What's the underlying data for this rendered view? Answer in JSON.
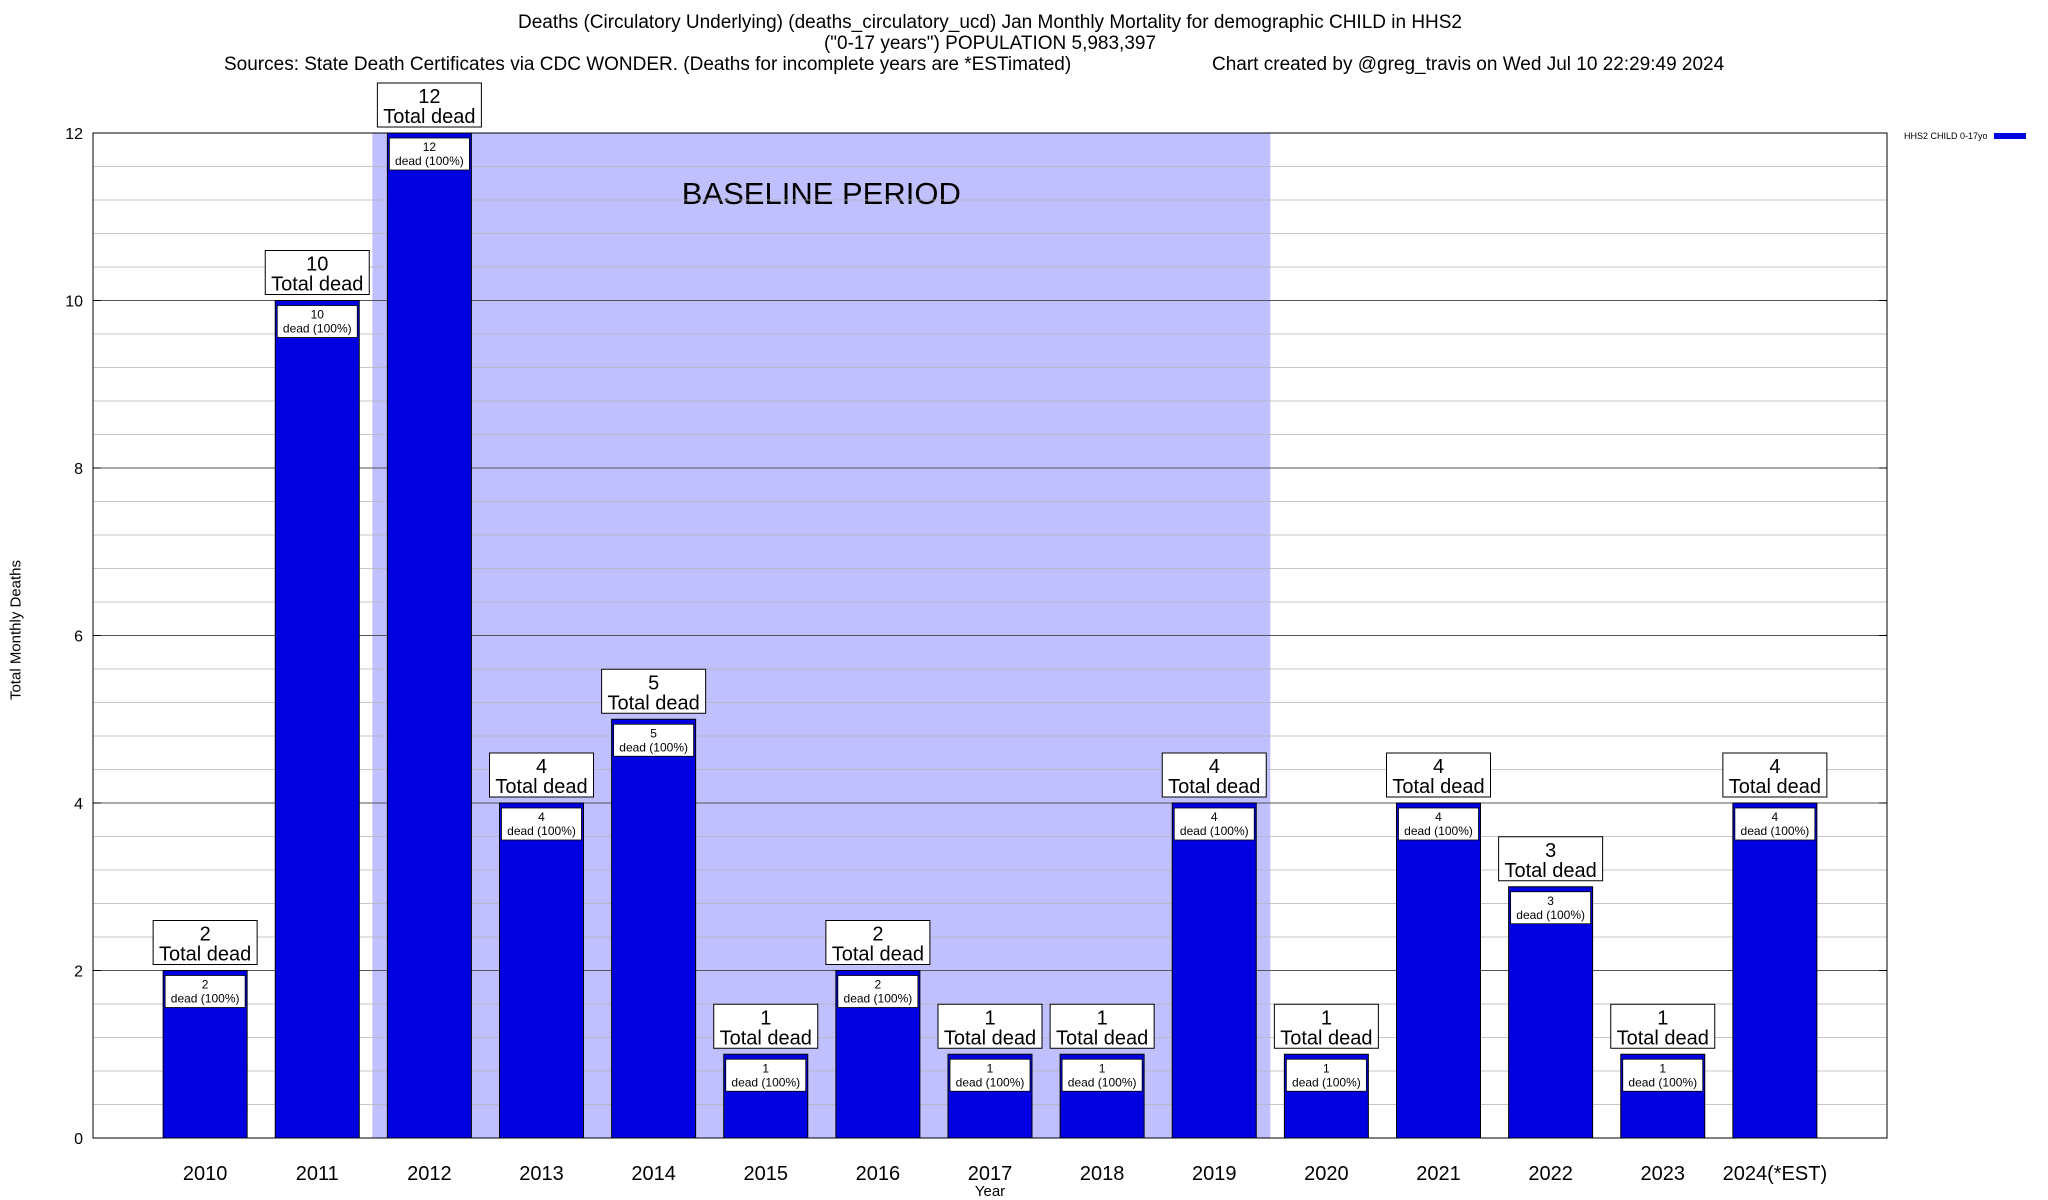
{
  "title": {
    "line1": "Deaths (Circulatory Underlying) (deaths_circulatory_ucd) Jan Monthly Mortality for demographic CHILD in HHS2",
    "line2": "(\"0-17 years\") POPULATION 5,983,397",
    "line3": "Sources: State Death Certificates via CDC WONDER. (Deaths for incomplete years are *ESTimated)",
    "line4": "Chart created by @greg_travis on Wed Jul 10 22:29:49 2024"
  },
  "legend": {
    "label": "HHS2 CHILD 0-17yo"
  },
  "colors": {
    "bar": "#0000e0",
    "baseline_band": "#c0c0ff",
    "grid": "#b4b4b4"
  },
  "chart_data": {
    "type": "bar",
    "title": "Deaths (Circulatory Underlying) (deaths_circulatory_ucd) Jan Monthly Mortality for demographic CHILD in HHS2",
    "xlabel": "Year",
    "ylabel": "Total Monthly Deaths",
    "ylim": [
      0,
      12
    ],
    "yticks": [
      0,
      2,
      4,
      6,
      8,
      10,
      12
    ],
    "grid": true,
    "legend_position": "top-right",
    "categories": [
      "2010",
      "2011",
      "2012",
      "2013",
      "2014",
      "2015",
      "2016",
      "2017",
      "2018",
      "2019",
      "2020",
      "2021",
      "2022",
      "2023",
      "2024(*EST)"
    ],
    "series": [
      {
        "name": "HHS2 CHILD 0-17yo",
        "values": [
          2,
          10,
          12,
          4,
          5,
          1,
          2,
          1,
          1,
          4,
          1,
          4,
          3,
          1,
          4
        ]
      }
    ],
    "total_label": "Total dead",
    "inner_label": "dead (100%)",
    "baseline": {
      "label": "BASELINE PERIOD",
      "from": "2012",
      "to": "2019"
    }
  }
}
